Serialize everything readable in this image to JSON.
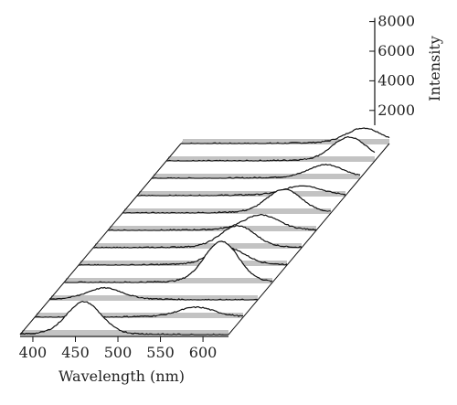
{
  "chart_data": {
    "type": "waterfall-line",
    "title": "",
    "xlabel": "Wavelength (nm)",
    "zlabel": "Intensity",
    "x_ticks": [
      400,
      450,
      500,
      550,
      600
    ],
    "z_ticks": [
      2000,
      4000,
      6000,
      8000
    ],
    "xlim": [
      385,
      630
    ],
    "zlim": [
      1000,
      8000
    ],
    "grid": false,
    "legend": "none",
    "series_count": 12,
    "peaks": [
      {
        "center": 460,
        "intensity": 4300
      },
      {
        "center": 575,
        "intensity": 1800
      },
      {
        "center": 450,
        "intensity": 2000
      },
      {
        "center": 570,
        "intensity": 5200
      },
      {
        "center": 560,
        "intensity": 2600
      },
      {
        "center": 555,
        "intensity": 3100
      },
      {
        "center": 565,
        "intensity": 2400
      },
      {
        "center": 575,
        "intensity": 3300
      },
      {
        "center": 580,
        "intensity": 1800
      },
      {
        "center": 590,
        "intensity": 2200
      },
      {
        "center": 600,
        "intensity": 3300
      },
      {
        "center": 600,
        "intensity": 2400
      }
    ],
    "line_color": "#111111"
  }
}
